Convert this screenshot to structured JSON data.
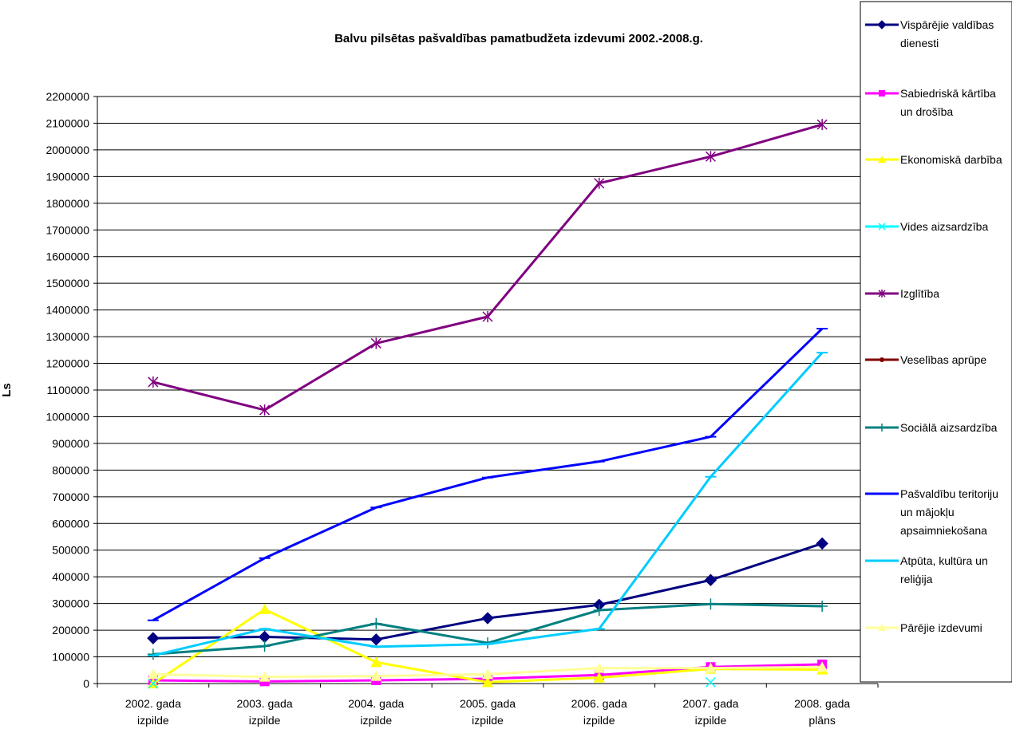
{
  "chart_data": {
    "type": "line",
    "title": "Balvu pilsētas pašvaldības pamatbudžeta izdevumi  2002.-2008.g.",
    "xlabel": "",
    "ylabel": "Ls",
    "ylim": [
      0,
      2200000
    ],
    "ytick_step": 100000,
    "grid": "horizontal",
    "legend_position": "right",
    "categories": [
      [
        "2002. gada",
        "izpilde"
      ],
      [
        "2003. gada",
        "izpilde"
      ],
      [
        "2004. gada",
        "izpilde"
      ],
      [
        "2005. gada",
        "izpilde"
      ],
      [
        "2006. gada",
        "izpilde"
      ],
      [
        "2007. gada",
        "izpilde"
      ],
      [
        "2008. gada",
        "plāns"
      ]
    ],
    "series": [
      {
        "name": [
          "Vispārējie valdības",
          "dienesti"
        ],
        "color": "#000080",
        "marker": "diamond",
        "values": [
          170000,
          175000,
          165000,
          245000,
          295000,
          388000,
          525000
        ]
      },
      {
        "name": [
          "Sabiedriskā kārtība",
          "un drošība"
        ],
        "color": "#ff00ff",
        "marker": "square",
        "values": [
          12000,
          8000,
          12000,
          18000,
          32000,
          62000,
          72000
        ]
      },
      {
        "name": [
          "Ekonomiskā darbība"
        ],
        "color": "#ffff00",
        "marker": "triangle",
        "values": [
          0,
          278000,
          80000,
          5000,
          22000,
          55000,
          52000
        ]
      },
      {
        "name": [
          "Vides aizsardzība"
        ],
        "color": "#00ffff",
        "marker": "x",
        "values": [
          0,
          null,
          null,
          null,
          null,
          5000,
          null
        ]
      },
      {
        "name": [
          "Izglītība"
        ],
        "color": "#800080",
        "marker": "star",
        "values": [
          1130000,
          1025000,
          1275000,
          1375000,
          1875000,
          1975000,
          2095000
        ]
      },
      {
        "name": [
          "Veselības aprūpe"
        ],
        "color": "#800000",
        "marker": "circle",
        "values": [
          null,
          null,
          null,
          null,
          null,
          null,
          null
        ]
      },
      {
        "name": [
          "Sociālā aizsardzība"
        ],
        "color": "#008080",
        "marker": "plus",
        "values": [
          110000,
          140000,
          225000,
          152000,
          275000,
          298000,
          290000
        ]
      },
      {
        "name": [
          "Pašvaldību teritoriju",
          "un mājokļu",
          "apsaimniekošana"
        ],
        "color": "#0000ff",
        "marker": "dash",
        "values": [
          237000,
          470000,
          660000,
          772000,
          832000,
          925000,
          1330000
        ]
      },
      {
        "name": [
          "Atpūta, kultūra un",
          "reliģija"
        ],
        "color": "#00ccff",
        "marker": "dash",
        "values": [
          105000,
          205000,
          138000,
          148000,
          205000,
          775000,
          1240000
        ]
      },
      {
        "name": [
          "Pārējie izdevumi"
        ],
        "color": "#ffff99",
        "marker": "triangle",
        "values": [
          35000,
          25000,
          28000,
          35000,
          58000,
          58000,
          62000
        ]
      }
    ]
  }
}
